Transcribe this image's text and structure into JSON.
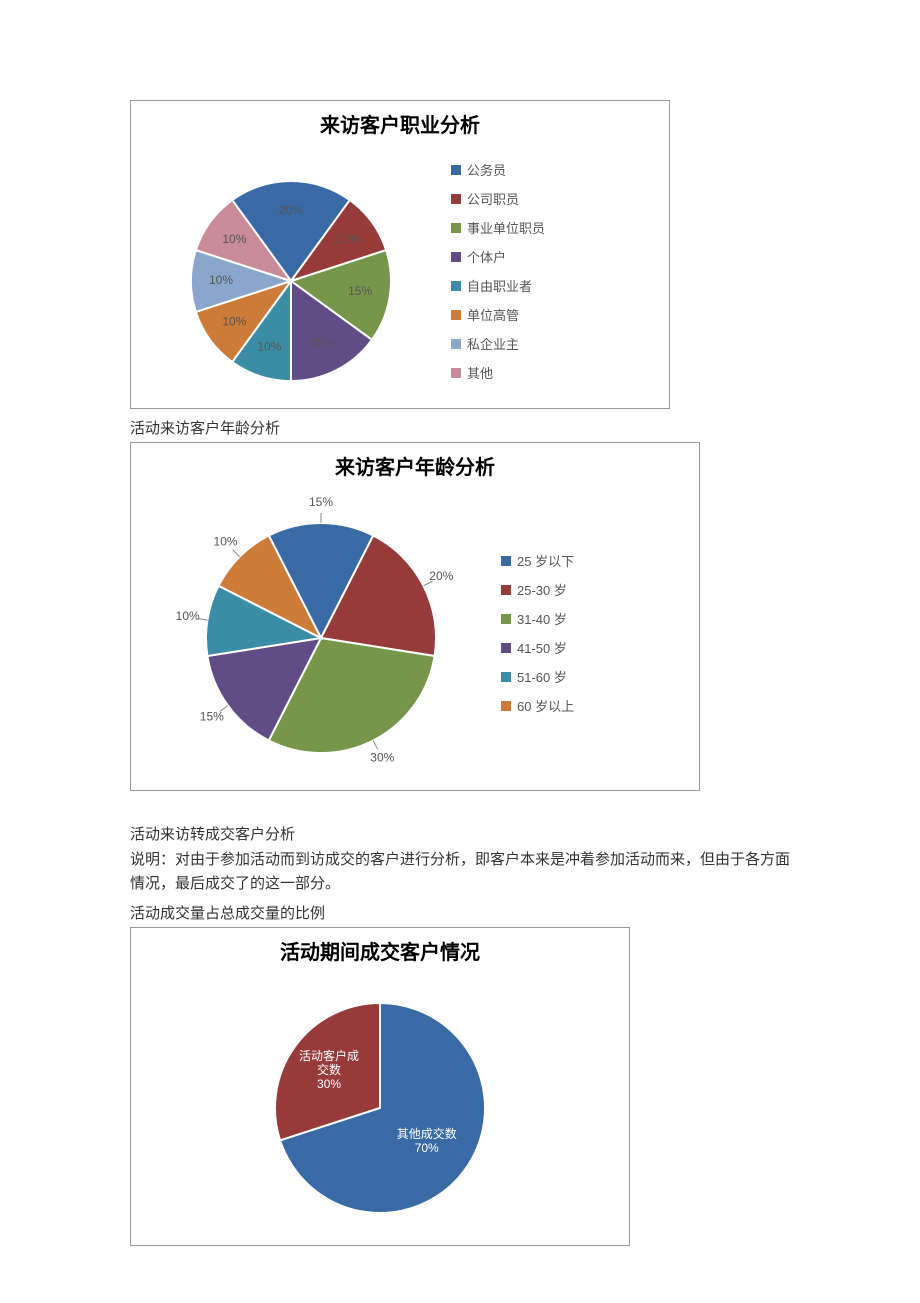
{
  "chart1": {
    "type": "pie",
    "title": "来访客户职业分析",
    "title_fontsize": 20,
    "pie_diameter": 200,
    "background_color": "#ffffff",
    "border_color": "#999999",
    "slice_border_color": "#ffffff",
    "label_color": "#555555",
    "label_fontsize": 12,
    "legend_fontsize": 13,
    "slices": [
      {
        "label": "公务员",
        "value": 20,
        "percent_label": "20%",
        "color": "#3a6aa6"
      },
      {
        "label": "公司职员",
        "value": 10,
        "percent_label": "10%",
        "color": "#963b3a"
      },
      {
        "label": "事业单位职员",
        "value": 15,
        "percent_label": "15%",
        "color": "#78964a"
      },
      {
        "label": "个体户",
        "value": 15,
        "percent_label": "15%",
        "color": "#614c85"
      },
      {
        "label": "自由职业者",
        "value": 10,
        "percent_label": "10%",
        "color": "#3b8da6"
      },
      {
        "label": "单位高管",
        "value": 10,
        "percent_label": "10%",
        "color": "#cc7b38"
      },
      {
        "label": "私企业主",
        "value": 10,
        "percent_label": "10%",
        "color": "#8aa6cc"
      },
      {
        "label": "其他",
        "value": 10,
        "percent_label": "10%",
        "color": "#c98a9a"
      }
    ]
  },
  "heading1": "活动来访客户年龄分析",
  "chart2": {
    "type": "pie",
    "title": "来访客户年龄分析",
    "title_fontsize": 20,
    "pie_diameter": 230,
    "background_color": "#ffffff",
    "border_color": "#999999",
    "slice_border_color": "#ffffff",
    "label_color": "#555555",
    "label_fontsize": 12,
    "legend_fontsize": 13,
    "slices": [
      {
        "label": "25 岁以下",
        "value": 15,
        "percent_label": "15%",
        "color": "#3a6aa6"
      },
      {
        "label": "25-30 岁",
        "value": 20,
        "percent_label": "20%",
        "color": "#963b3a"
      },
      {
        "label": "31-40 岁",
        "value": 30,
        "percent_label": "30%",
        "color": "#78964a"
      },
      {
        "label": "41-50 岁",
        "value": 15,
        "percent_label": "15%",
        "color": "#614c85"
      },
      {
        "label": "51-60 岁",
        "value": 10,
        "percent_label": "10%",
        "color": "#3b8da6"
      },
      {
        "label": "60 岁以上",
        "value": 10,
        "percent_label": "10%",
        "color": "#cc7b38"
      }
    ]
  },
  "heading2": "活动来访转成交客户分析",
  "para1": "说明：对由于参加活动而到访成交的客户进行分析，即客户本来是冲着参加活动而来，但由于各方面情况，最后成交了的这一部分。",
  "heading3": "活动成交量占总成交量的比例",
  "chart3": {
    "type": "pie",
    "title": "活动期间成交客户情况",
    "title_fontsize": 20,
    "pie_diameter": 210,
    "background_color": "#ffffff",
    "border_color": "#999999",
    "slice_border_color": "#ffffff",
    "inner_label_color": "#ffffff",
    "inner_label_fontsize": 12,
    "slices": [
      {
        "label_line1": "活动客户成",
        "label_line2": "交数",
        "percent_label": "30%",
        "value": 30,
        "color": "#963b3a"
      },
      {
        "label_line1": "其他成交数",
        "label_line2": "",
        "percent_label": "70%",
        "value": 70,
        "color": "#3a6aa6"
      }
    ]
  }
}
